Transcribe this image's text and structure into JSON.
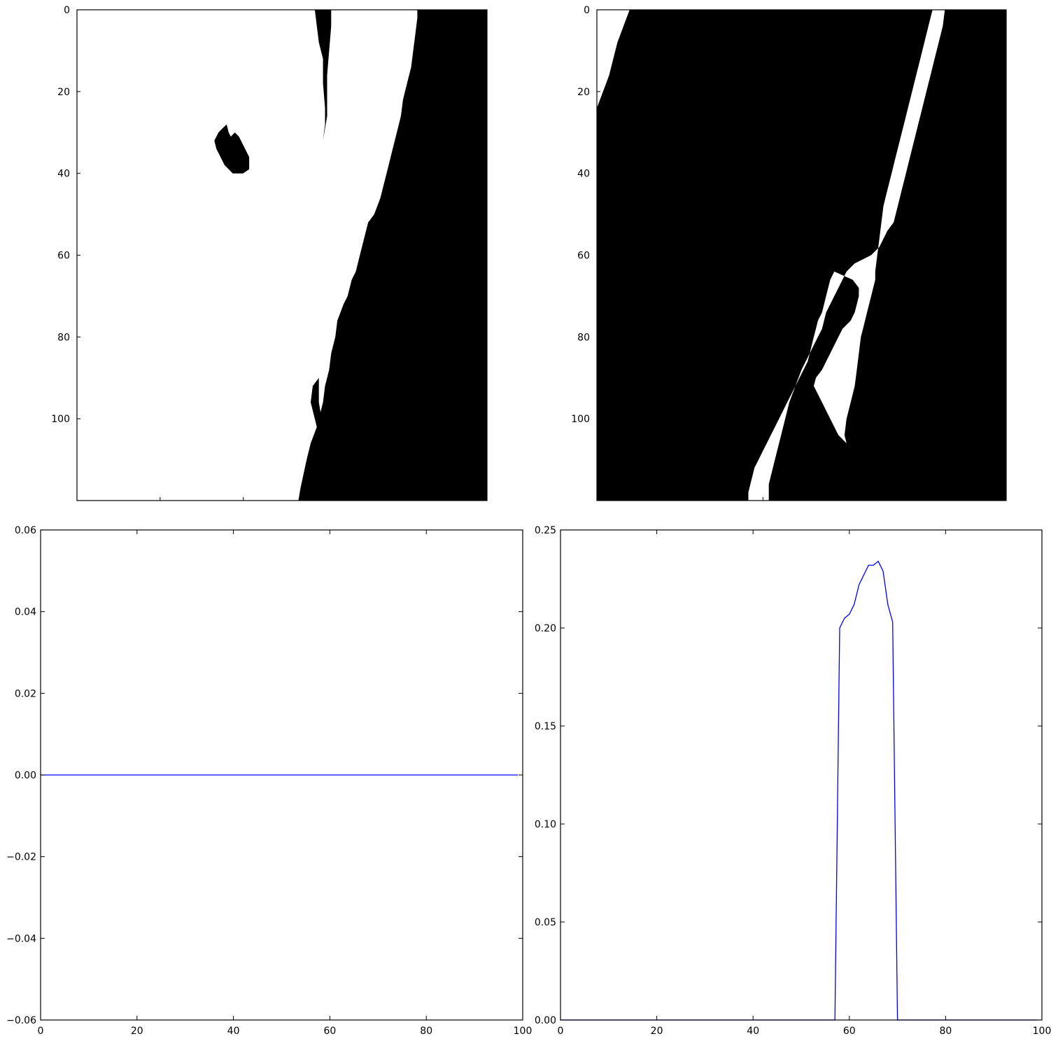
{
  "colors": {
    "line": "#0000ff",
    "binary_on": "#ffffff",
    "binary_off": "#000000"
  },
  "chart_data": [
    {
      "type": "heatmap",
      "colormap": "gray",
      "yticks": [
        0,
        20,
        40,
        60,
        80,
        100
      ],
      "yticklabels": [
        "0",
        "20",
        "40",
        "60",
        "80",
        "100"
      ],
      "xticklabels_visible": false,
      "xlim": [
        0,
        100
      ],
      "ylim": [
        120,
        0
      ],
      "black_regions": [
        [
          [
            0,
            59.5
          ],
          [
            0,
            100
          ],
          [
            120,
            100
          ],
          [
            120,
            54
          ],
          [
            117,
            54.5
          ],
          [
            110,
            56
          ],
          [
            106,
            57
          ],
          [
            102,
            58.5
          ],
          [
            100,
            59
          ],
          [
            96,
            60
          ],
          [
            92,
            60.5
          ],
          [
            88,
            61.5
          ],
          [
            84,
            62
          ],
          [
            80,
            63
          ],
          [
            76,
            63.5
          ],
          [
            72,
            65
          ],
          [
            70,
            66
          ],
          [
            66,
            67
          ],
          [
            64,
            68
          ],
          [
            60,
            69
          ],
          [
            56,
            70
          ],
          [
            52,
            71
          ],
          [
            50,
            72.5
          ],
          [
            46,
            74
          ],
          [
            42,
            75
          ],
          [
            38,
            76
          ],
          [
            34,
            77
          ],
          [
            30,
            78
          ],
          [
            26,
            79
          ],
          [
            22,
            79.5
          ],
          [
            18,
            80.5
          ],
          [
            14,
            81.5
          ],
          [
            10,
            82
          ],
          [
            6,
            82.5
          ],
          [
            2,
            83
          ],
          [
            0,
            83
          ]
        ],
        [
          [
            0,
            93
          ],
          [
            0,
            100
          ],
          [
            0,
            99
          ],
          [
            14,
            91
          ],
          [
            12,
            90.5
          ],
          [
            8,
            91
          ],
          [
            4,
            92
          ]
        ],
        [
          [
            8,
            86
          ],
          [
            8,
            92
          ],
          [
            4,
            93
          ],
          [
            0,
            91
          ],
          [
            0,
            86
          ]
        ],
        [
          [
            0,
            58
          ],
          [
            8,
            59
          ],
          [
            12,
            60
          ],
          [
            18,
            60
          ],
          [
            24,
            60.5
          ],
          [
            28,
            60.5
          ],
          [
            32,
            60
          ],
          [
            26,
            61
          ],
          [
            22,
            61
          ],
          [
            16,
            61
          ],
          [
            10,
            61.5
          ],
          [
            4,
            62
          ],
          [
            0,
            62
          ]
        ],
        [
          [
            28,
            36.5
          ],
          [
            30,
            37
          ],
          [
            31,
            37.5
          ],
          [
            30,
            38.5
          ],
          [
            31,
            39.5
          ],
          [
            33,
            40.5
          ],
          [
            36,
            42
          ],
          [
            39,
            42
          ],
          [
            40,
            40.5
          ],
          [
            40,
            38
          ],
          [
            39,
            37
          ],
          [
            38,
            36
          ],
          [
            36,
            35
          ],
          [
            34,
            34
          ],
          [
            32,
            33.5
          ],
          [
            30,
            34.5
          ],
          [
            29,
            35.5
          ]
        ],
        [
          [
            90,
            59
          ],
          [
            96,
            59
          ],
          [
            102,
            60
          ],
          [
            104,
            59
          ],
          [
            100,
            58
          ],
          [
            96,
            57
          ],
          [
            92,
            57.5
          ]
        ]
      ]
    },
    {
      "type": "heatmap",
      "colormap": "gray",
      "yticks": [
        0,
        20,
        40,
        60,
        80,
        100
      ],
      "yticklabels": [
        "0",
        "20",
        "40",
        "60",
        "80",
        "100"
      ],
      "xticklabels_visible": false,
      "xlim": [
        0,
        100
      ],
      "ylim": [
        120,
        0
      ],
      "white_regions": [
        [
          [
            0,
            0
          ],
          [
            0,
            8
          ],
          [
            4,
            6.5
          ],
          [
            8,
            5
          ],
          [
            12,
            4
          ],
          [
            16,
            3
          ],
          [
            20,
            1.5
          ],
          [
            24,
            0
          ]
        ],
        [
          [
            0,
            57
          ],
          [
            0,
            82
          ],
          [
            4,
            81
          ],
          [
            8,
            80
          ],
          [
            12,
            79
          ],
          [
            16,
            78
          ],
          [
            20,
            77
          ],
          [
            24,
            76
          ],
          [
            28,
            75
          ],
          [
            32,
            74
          ],
          [
            36,
            73
          ],
          [
            40,
            72
          ],
          [
            44,
            71
          ],
          [
            48,
            70
          ],
          [
            52,
            69.5
          ],
          [
            56,
            69
          ],
          [
            60,
            68.5
          ],
          [
            64,
            68
          ],
          [
            66,
            68
          ],
          [
            70,
            67
          ],
          [
            74,
            66
          ],
          [
            78,
            65
          ],
          [
            80,
            64.5
          ],
          [
            84,
            64
          ],
          [
            88,
            63.5
          ],
          [
            92,
            63
          ],
          [
            96,
            62
          ],
          [
            100,
            61
          ],
          [
            104,
            60.5
          ],
          [
            106,
            61
          ],
          [
            104,
            59
          ],
          [
            100,
            57
          ],
          [
            98,
            56
          ],
          [
            96,
            55
          ],
          [
            94,
            54
          ],
          [
            92,
            53
          ],
          [
            90,
            53.5
          ],
          [
            88,
            55
          ],
          [
            86,
            56
          ],
          [
            84,
            57
          ],
          [
            82,
            58
          ],
          [
            80,
            59
          ],
          [
            78,
            60
          ],
          [
            76,
            62
          ],
          [
            74,
            63
          ],
          [
            72,
            63.5
          ],
          [
            70,
            64
          ],
          [
            68,
            64
          ],
          [
            66,
            62.5
          ],
          [
            64,
            58
          ],
          [
            66,
            57
          ],
          [
            70,
            56
          ],
          [
            74,
            55
          ],
          [
            76,
            54
          ],
          [
            78,
            53.5
          ],
          [
            80,
            53
          ],
          [
            82,
            52.5
          ],
          [
            84,
            52
          ],
          [
            86,
            51.5
          ],
          [
            88,
            50.5
          ],
          [
            90,
            49.5
          ],
          [
            92,
            48.5
          ],
          [
            94,
            47.5
          ],
          [
            96,
            46.5
          ],
          [
            98,
            45.5
          ],
          [
            100,
            44.5
          ],
          [
            102,
            43.5
          ],
          [
            104,
            42.5
          ],
          [
            106,
            41.5
          ],
          [
            108,
            40.5
          ],
          [
            110,
            39.5
          ],
          [
            112,
            38.5
          ],
          [
            114,
            38
          ],
          [
            116,
            37.5
          ],
          [
            118,
            37
          ],
          [
            120,
            37
          ],
          [
            120,
            42
          ],
          [
            116,
            42
          ],
          [
            112,
            43
          ],
          [
            108,
            44
          ],
          [
            104,
            45
          ],
          [
            100,
            46
          ],
          [
            96,
            47
          ],
          [
            92,
            48.5
          ],
          [
            88,
            50
          ],
          [
            84,
            52
          ],
          [
            82,
            53
          ],
          [
            80,
            54
          ],
          [
            78,
            55
          ],
          [
            76,
            55.5
          ],
          [
            74,
            56
          ],
          [
            72,
            57
          ],
          [
            70,
            58
          ],
          [
            68,
            59
          ],
          [
            66,
            60
          ],
          [
            64,
            61
          ],
          [
            62,
            63
          ],
          [
            60,
            67
          ],
          [
            58,
            69
          ],
          [
            56,
            70
          ],
          [
            54,
            71
          ],
          [
            52,
            72.5
          ],
          [
            48,
            73.5
          ],
          [
            44,
            74.5
          ],
          [
            40,
            75.5
          ],
          [
            36,
            76.5
          ],
          [
            32,
            77.5
          ],
          [
            28,
            78.5
          ],
          [
            24,
            79.5
          ],
          [
            20,
            80.5
          ],
          [
            16,
            81.5
          ],
          [
            12,
            82.5
          ],
          [
            8,
            83.5
          ],
          [
            4,
            84.5
          ],
          [
            0,
            85
          ]
        ]
      ]
    },
    {
      "type": "line",
      "xlim": [
        0,
        100
      ],
      "ylim": [
        -0.06,
        0.06
      ],
      "xticks": [
        0,
        20,
        40,
        60,
        80,
        100
      ],
      "xticklabels": [
        "0",
        "20",
        "40",
        "60",
        "80",
        "100"
      ],
      "yticks": [
        -0.06,
        -0.04,
        -0.02,
        0.0,
        0.02,
        0.04,
        0.06
      ],
      "yticklabels": [
        "−0.06",
        "−0.04",
        "−0.02",
        "0.00",
        "0.02",
        "0.04",
        "0.06"
      ],
      "series": [
        {
          "x": [
            0,
            99
          ],
          "y": [
            0,
            0
          ]
        }
      ]
    },
    {
      "type": "line",
      "xlim": [
        0,
        100
      ],
      "ylim": [
        0,
        0.25
      ],
      "xticks": [
        0,
        20,
        40,
        60,
        80,
        100
      ],
      "xticklabels": [
        "0",
        "20",
        "40",
        "60",
        "80",
        "100"
      ],
      "yticks": [
        0.0,
        0.05,
        0.1,
        0.15,
        0.2,
        0.25
      ],
      "yticklabels": [
        "0.00",
        "0.05",
        "0.10",
        "0.15",
        "0.20",
        "0.25"
      ],
      "series": [
        {
          "x": [
            0,
            56,
            57,
            58,
            59,
            60,
            61,
            62,
            63,
            64,
            65,
            66,
            67,
            68,
            69,
            70,
            71,
            99
          ],
          "y": [
            0,
            0,
            0,
            0.2,
            0.205,
            0.207,
            0.212,
            0.222,
            0.227,
            0.232,
            0.232,
            0.234,
            0.229,
            0.212,
            0.203,
            0,
            0,
            0
          ]
        }
      ]
    }
  ]
}
